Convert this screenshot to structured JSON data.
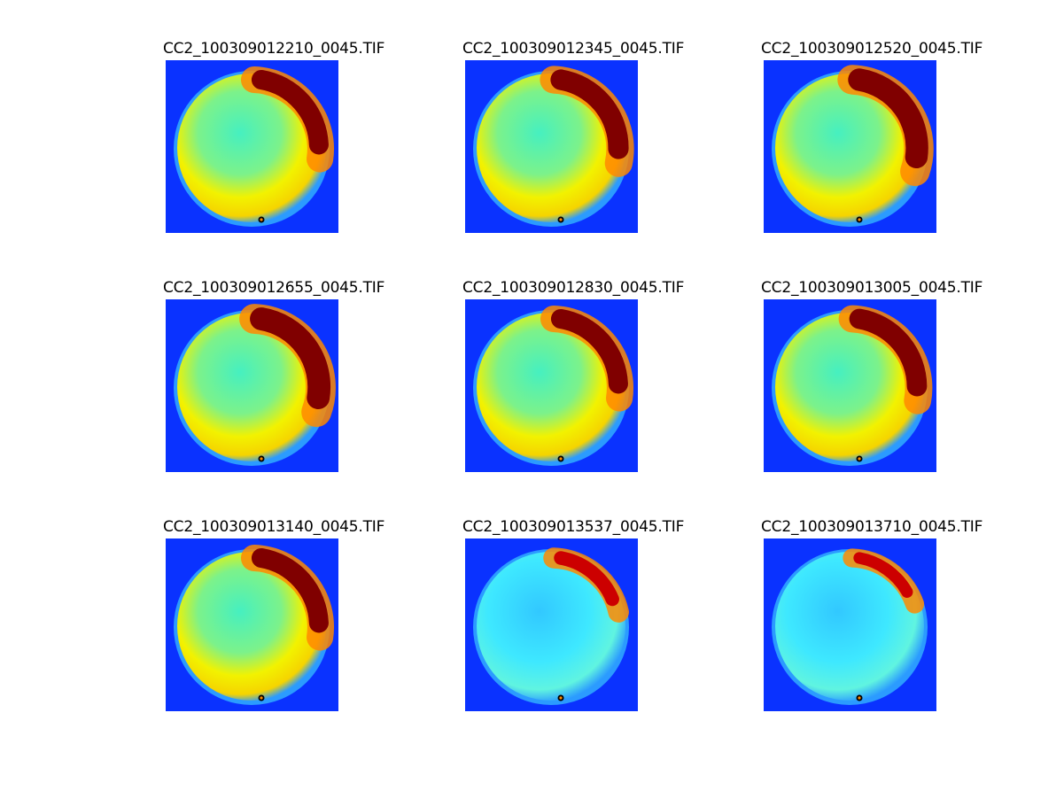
{
  "colors": {
    "background": "#0a32ff",
    "rim": "#2b9bff",
    "cyan": "#3ee8ff",
    "yellow": "#f2f200",
    "orange": "#ff8a00",
    "red": "#cc0000",
    "darkred": "#800000"
  },
  "panels": [
    {
      "title": "CC2_100309012210_0045.TIF",
      "level": 0.55
    },
    {
      "title": "CC2_100309012345_0045.TIF",
      "level": 0.6
    },
    {
      "title": "CC2_100309012520_0045.TIF",
      "level": 0.7
    },
    {
      "title": "CC2_100309012655_0045.TIF",
      "level": 0.72
    },
    {
      "title": "CC2_100309012830_0045.TIF",
      "level": 0.55
    },
    {
      "title": "CC2_100309013005_0045.TIF",
      "level": 0.58
    },
    {
      "title": "CC2_100309013140_0045.TIF",
      "level": 0.55
    },
    {
      "title": "CC2_100309013537_0045.TIF",
      "level": 0.25
    },
    {
      "title": "CC2_100309013710_0045.TIF",
      "level": 0.15
    }
  ]
}
